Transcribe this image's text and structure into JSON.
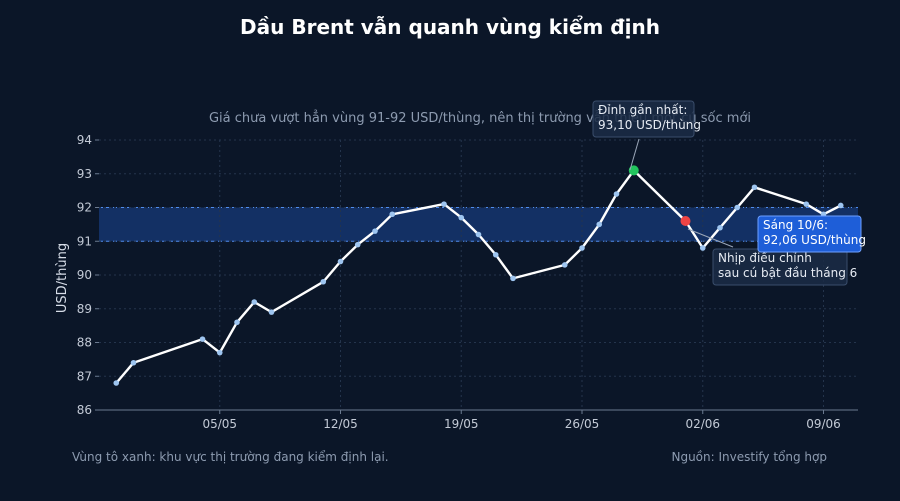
{
  "chart_data": {
    "type": "line",
    "title": "Dầu Brent vẫn quanh vùng kiểm định",
    "subtitle": "Giá chưa vượt hẳn vùng 91-92 USD/thùng, nên thị trường vẫn thiếu một cú sốc mới",
    "ylabel": "USD/thùng",
    "xlabel": "",
    "ylim": [
      86,
      94
    ],
    "yticks": [
      86,
      87,
      88,
      89,
      90,
      91,
      92,
      93,
      94
    ],
    "xlim": [
      "2025-04-28",
      "2025-06-11"
    ],
    "xticks": [
      "05/05",
      "12/05",
      "19/05",
      "26/05",
      "02/06",
      "09/06"
    ],
    "xtick_dates": [
      "2025-05-05",
      "2025-05-12",
      "2025-05-19",
      "2025-05-26",
      "2025-06-02",
      "2025-06-09"
    ],
    "band": {
      "low": 91,
      "high": 92
    },
    "grid": true,
    "series": [
      {
        "x": [
          "2025-04-29",
          "2025-04-30",
          "2025-05-04",
          "2025-05-05",
          "2025-05-06",
          "2025-05-07",
          "2025-05-08",
          "2025-05-11",
          "2025-05-12",
          "2025-05-13",
          "2025-05-14",
          "2025-05-15",
          "2025-05-18",
          "2025-05-19",
          "2025-05-20",
          "2025-05-21",
          "2025-05-22",
          "2025-05-25",
          "2025-05-26",
          "2025-05-27",
          "2025-05-28",
          "2025-05-29",
          "2025-06-01",
          "2025-06-02",
          "2025-06-03",
          "2025-06-04",
          "2025-06-05",
          "2025-06-08",
          "2025-06-09",
          "2025-06-10"
        ],
        "values": [
          86.8,
          87.4,
          88.1,
          87.7,
          88.6,
          89.2,
          88.9,
          89.8,
          90.4,
          90.9,
          91.3,
          91.8,
          92.1,
          91.7,
          91.2,
          90.6,
          89.9,
          90.3,
          90.8,
          91.5,
          92.4,
          93.1,
          91.6,
          90.8,
          91.4,
          92.0,
          92.6,
          92.1,
          91.8,
          92.06
        ]
      }
    ],
    "highlights": [
      {
        "date": "2025-05-29",
        "value": 93.1,
        "color": "#22c55e"
      },
      {
        "date": "2025-06-01",
        "value": 91.6,
        "color": "#ef4444"
      }
    ],
    "annotations": [
      {
        "line1": "Đỉnh gần nhất:",
        "line2": "93,10 USD/thùng"
      },
      {
        "line1": "Nhịp điều chỉnh",
        "line2": "sau cú bật đầu tháng 6"
      },
      {
        "line1": "Sáng 10/6:",
        "line2": "92,06 USD/thùng"
      }
    ],
    "footer_left": "Vùng tô xanh: khu vực thị trường đang kiểm định lại.",
    "footer_right": "Nguồn: Investify tổng hợp"
  },
  "colors": {
    "background": "#0b1628",
    "line": "#ffffff",
    "marker": "#9ec5f0",
    "band_fill": "#173a78",
    "band_edge": "#4f8cf0",
    "grid": "#24344c",
    "peak": "#22c55e",
    "dip": "#ef4444",
    "callout_highlight": "#1e5ed8"
  }
}
